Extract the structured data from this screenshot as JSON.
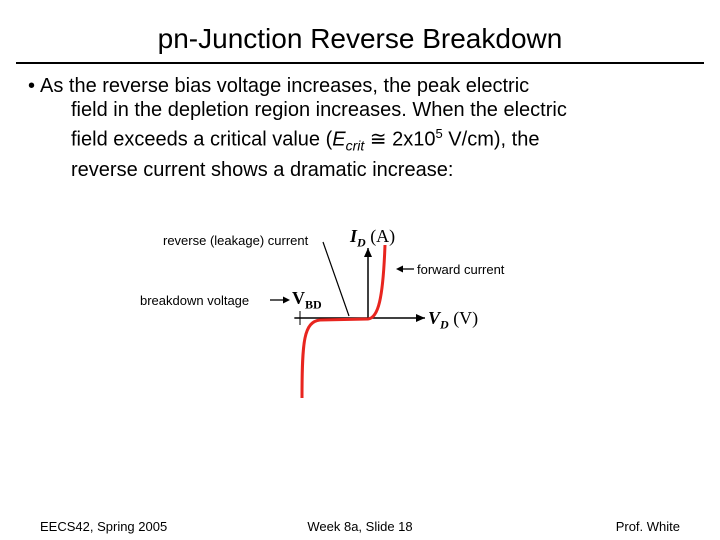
{
  "slide": {
    "title": "pn-Junction Reverse Breakdown",
    "bullet": {
      "line1": "As the reverse bias voltage increases, the peak electric",
      "line2": "field in the depletion region increases.  When the electric",
      "line3_pre": "field exceeds a critical value (",
      "ecrit_E": "E",
      "ecrit_sub": "crit",
      "approx": "≅",
      "value": " 2x10",
      "exp": "5",
      "line3_post": " V/cm), the",
      "line4": "reverse current shows a dramatic increase:"
    }
  },
  "diagram": {
    "reverse_label": "reverse (leakage) current",
    "breakdown_label": "breakdown voltage",
    "forward_label": "forward current",
    "id_axis": {
      "var": "I",
      "sub": "D",
      "unit": "(A)"
    },
    "vd_axis": {
      "var": "V",
      "sub": "D",
      "unit": "(V)"
    },
    "vbd": {
      "var": "V",
      "sub": "BD"
    },
    "curve_color": "#e8251f"
  },
  "footer": {
    "left": "EECS42, Spring 2005",
    "center": "Week 8a, Slide 18",
    "right": "Prof. White"
  }
}
